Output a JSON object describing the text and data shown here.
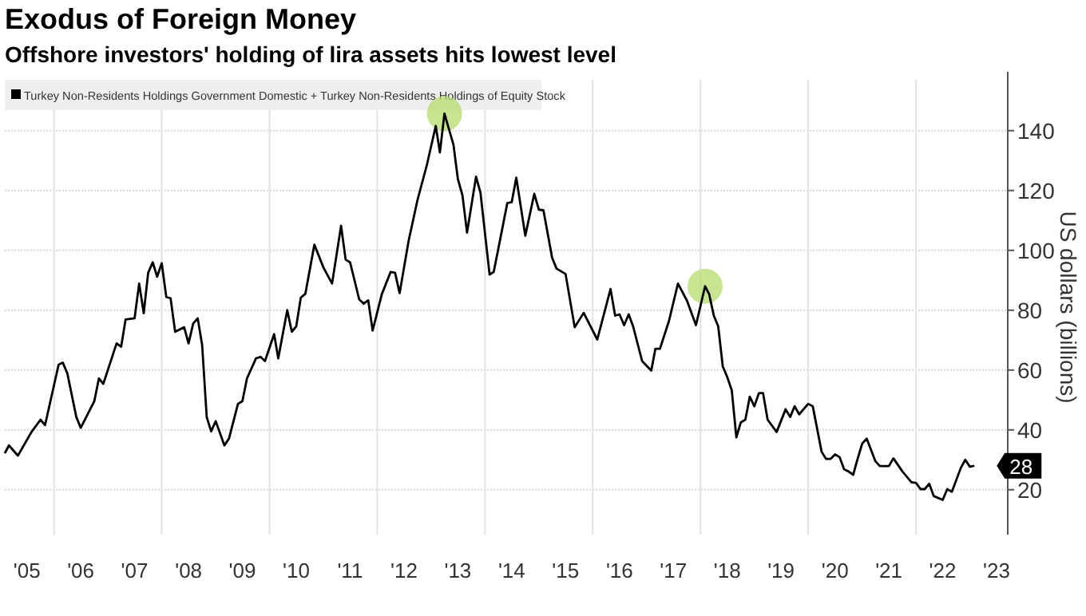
{
  "chart_data": {
    "type": "line",
    "title": "Exodus of Foreign Money",
    "subtitle": "Offshore investors' holding of lira assets hits lowest level",
    "ylabel": "US dollars (billions)",
    "series": [
      {
        "name": "Turkey Non-Residents Holdings Government Domestic + Turkey Non-Residents Holdings of Equity Stock",
        "color": "#000000",
        "x": [
          "2005-02",
          "2005-03",
          "2005-05",
          "2005-08",
          "2005-10",
          "2005-11",
          "2006-02",
          "2006-03",
          "2006-04",
          "2006-06",
          "2006-07",
          "2006-10",
          "2006-11",
          "2006-12",
          "2007-03",
          "2007-04",
          "2007-05",
          "2007-07",
          "2007-08",
          "2007-09",
          "2007-10",
          "2007-11",
          "2007-12",
          "2008-01",
          "2008-02",
          "2008-03",
          "2008-04",
          "2008-06",
          "2008-07",
          "2008-08",
          "2008-09",
          "2008-10",
          "2008-11",
          "2008-12",
          "2009-01",
          "2009-03",
          "2009-04",
          "2009-06",
          "2009-07",
          "2009-08",
          "2009-10",
          "2009-11",
          "2009-12",
          "2010-02",
          "2010-03",
          "2010-05",
          "2010-06",
          "2010-07",
          "2010-08",
          "2010-09",
          "2010-11",
          "2011-01",
          "2011-03",
          "2011-05",
          "2011-06",
          "2011-07",
          "2011-09",
          "2011-10",
          "2011-11",
          "2011-12",
          "2012-02",
          "2012-04",
          "2012-05",
          "2012-06",
          "2012-08",
          "2012-10",
          "2012-12",
          "2013-02",
          "2013-03",
          "2013-04",
          "2013-06",
          "2013-07",
          "2013-08",
          "2013-09",
          "2013-11",
          "2013-12",
          "2014-02",
          "2014-03",
          "2014-04",
          "2014-06",
          "2014-07",
          "2014-08",
          "2014-10",
          "2014-12",
          "2015-01",
          "2015-02",
          "2015-04",
          "2015-05",
          "2015-07",
          "2015-09",
          "2015-11",
          "2016-02",
          "2016-05",
          "2016-06",
          "2016-07",
          "2016-08",
          "2016-09",
          "2016-10",
          "2016-12",
          "2017-02",
          "2017-03",
          "2017-04",
          "2017-06",
          "2017-08",
          "2017-10",
          "2017-12",
          "2018-02",
          "2018-03",
          "2018-04",
          "2018-05",
          "2018-06",
          "2018-07",
          "2018-08",
          "2018-09",
          "2018-10",
          "2018-11",
          "2018-12",
          "2019-01",
          "2019-02",
          "2019-03",
          "2019-04",
          "2019-06",
          "2019-08",
          "2019-09",
          "2019-10",
          "2019-11",
          "2020-01",
          "2020-02",
          "2020-04",
          "2020-05",
          "2020-06",
          "2020-07",
          "2020-08",
          "2020-09",
          "2020-10",
          "2020-11",
          "2020-12",
          "2021-01",
          "2021-02",
          "2021-04",
          "2021-05",
          "2021-07",
          "2021-08",
          "2021-10",
          "2021-12",
          "2022-01",
          "2022-02",
          "2022-03",
          "2022-04",
          "2022-05",
          "2022-07",
          "2022-08",
          "2022-09",
          "2022-11",
          "2022-12",
          "2023-01",
          "2023-02"
        ],
        "values": [
          32.2,
          34.8,
          31.4,
          39.3,
          43.4,
          41.6,
          61.8,
          62.5,
          58.9,
          44.3,
          40.7,
          49.6,
          57.2,
          55.4,
          68.9,
          67.8,
          76.9,
          77.3,
          88.9,
          79,
          92.5,
          96,
          91.2,
          95.7,
          84.4,
          84,
          72.8,
          74.3,
          68.9,
          75.5,
          77.3,
          68.4,
          44.3,
          39.5,
          42.9,
          34.8,
          37.1,
          48.7,
          49.6,
          57.2,
          63.9,
          64.4,
          63,
          72,
          63.9,
          80,
          72.8,
          74.6,
          84.2,
          85.5,
          101.9,
          94.3,
          88.9,
          108.2,
          96.9,
          96,
          83.6,
          82.2,
          83.3,
          73.2,
          85.3,
          92.8,
          92.5,
          85.7,
          103.2,
          117,
          128.2,
          141.6,
          132.7,
          145.7,
          135.3,
          123.8,
          118.4,
          105.9,
          124.6,
          119.3,
          91.9,
          92.8,
          100.5,
          115.8,
          116.1,
          124.3,
          104.9,
          118.9,
          113.6,
          113.4,
          97.5,
          93.9,
          92.1,
          74.3,
          79.1,
          70.2,
          87.1,
          78.2,
          78.6,
          75,
          78.6,
          74.6,
          63,
          59.8,
          67.1,
          67.1,
          76.4,
          88.9,
          83.2,
          75,
          88,
          85.3,
          78.2,
          74.6,
          61.2,
          57.7,
          53.2,
          37.5,
          42.5,
          43.4,
          51.1,
          47.9,
          52.3,
          52.3,
          43.4,
          39.3,
          46.9,
          44.3,
          47.9,
          45.2,
          48.7,
          47.9,
          32.7,
          30.3,
          30.3,
          31.8,
          30.9,
          26.8,
          26.1,
          25,
          30.3,
          35.4,
          37.1,
          29.5,
          27.9,
          27.9,
          30.5,
          26.1,
          22.5,
          22.3,
          20.2,
          20.2,
          22,
          17.9,
          16.6,
          20.2,
          19.3,
          27.3,
          30,
          27.7,
          28
        ]
      },
      {
        "type": "scatter",
        "color": "#b4dc6c",
        "marker": "circle",
        "x": [
          "2013-04",
          "2018-02"
        ],
        "values": [
          145.7,
          88
        ]
      }
    ],
    "xlim": [
      "2005-02",
      "2023-09-15"
    ],
    "xticks": [
      {
        "value": "2005-07",
        "label": "'05"
      },
      {
        "value": "2006",
        "label": null
      },
      {
        "value": "2006-07",
        "label": "'06"
      },
      {
        "value": "2007-07",
        "label": "'07"
      },
      {
        "value": "2008",
        "label": null
      },
      {
        "value": "2008-07",
        "label": "'08"
      },
      {
        "value": "2009-07",
        "label": "'09"
      },
      {
        "value": "2010",
        "label": null
      },
      {
        "value": "2010-07",
        "label": "'10"
      },
      {
        "value": "2011-07",
        "label": "'11"
      },
      {
        "value": "2012",
        "label": null
      },
      {
        "value": "2012-07",
        "label": "'12"
      },
      {
        "value": "2013-07",
        "label": "'13"
      },
      {
        "value": "2014",
        "label": null
      },
      {
        "value": "2014-07",
        "label": "'14"
      },
      {
        "value": "2015-07",
        "label": "'15"
      },
      {
        "value": "2016",
        "label": null
      },
      {
        "value": "2016-07",
        "label": "'16"
      },
      {
        "value": "2017-07",
        "label": "'17"
      },
      {
        "value": "2018",
        "label": null
      },
      {
        "value": "2018-07",
        "label": "'18"
      },
      {
        "value": "2019-07",
        "label": "'19"
      },
      {
        "value": "2020",
        "label": null
      },
      {
        "value": "2020-07",
        "label": "'20"
      },
      {
        "value": "2021-07",
        "label": "'21"
      },
      {
        "value": "2022",
        "label": null
      },
      {
        "value": "2022-07",
        "label": "'22"
      },
      {
        "value": "2023-07",
        "label": "'23"
      }
    ],
    "ylim": [
      5,
      157
    ],
    "yticks": [
      20,
      40,
      60,
      80,
      100,
      120,
      140
    ],
    "grid": true,
    "legend": "top left",
    "marker": "none",
    "annotations": [
      {
        "text": "28",
        "x": "2023-02",
        "y": 28
      }
    ]
  }
}
